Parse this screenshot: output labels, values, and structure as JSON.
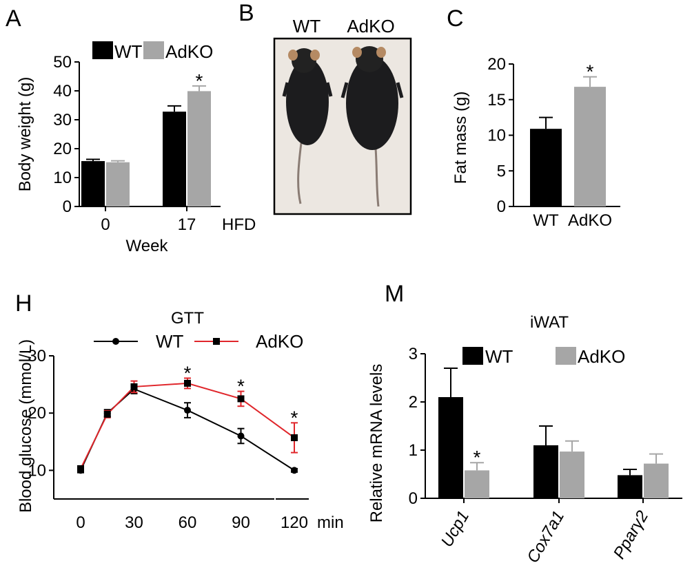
{
  "panels": {
    "A": "A",
    "B": "B",
    "C": "C",
    "H": "H",
    "M": "M"
  },
  "colors": {
    "wt": "#000000",
    "adko": "#a6a6a6",
    "gtt_adko_line": "#e0262b"
  },
  "mouse_photo": {
    "labels": [
      "WT",
      "AdKO"
    ],
    "icon": "mouse-photo-illustration"
  },
  "chart_data": [
    {
      "id": "A",
      "type": "bar",
      "categories": [
        "0",
        "17"
      ],
      "category_suffix": "HFD",
      "xlabel": "Week",
      "ylabel": "Body weight (g)",
      "ylim": [
        0,
        50
      ],
      "yticks": [
        "0",
        "10",
        "20",
        "30",
        "40",
        "50"
      ],
      "legend": "top",
      "series": [
        {
          "name": "WT",
          "values": [
            15.7,
            32.8
          ],
          "errors": [
            0.6,
            2.0
          ]
        },
        {
          "name": "AdKO",
          "values": [
            15.3,
            39.9
          ],
          "errors": [
            0.5,
            1.8
          ]
        }
      ],
      "significance": [
        {
          "category": "17",
          "series": "AdKO",
          "mark": "*"
        }
      ]
    },
    {
      "id": "C",
      "type": "bar",
      "categories": [
        "WT",
        "AdKO"
      ],
      "ylabel": "Fat mass (g)",
      "ylim": [
        0,
        20
      ],
      "yticks": [
        "0",
        "5",
        "10",
        "15",
        "20"
      ],
      "values": [
        10.9,
        16.8
      ],
      "errors": [
        1.6,
        1.4
      ],
      "significance": [
        {
          "category": "AdKO",
          "mark": "*"
        }
      ]
    },
    {
      "id": "H",
      "type": "line",
      "title": "GTT",
      "ylabel": "Blood glucose (mmol/L)",
      "x": [
        0,
        15,
        30,
        60,
        90,
        120
      ],
      "xticks": [
        "0",
        "30",
        "60",
        "90",
        "120"
      ],
      "xunit": "min",
      "ylim": [
        5,
        30
      ],
      "yticks": [
        "10",
        "20",
        "30"
      ],
      "legend": "top",
      "series": [
        {
          "name": "WT",
          "values": [
            10.0,
            20.0,
            24.2,
            20.5,
            16.0,
            10.0
          ],
          "errors": [
            0.4,
            0.6,
            0.8,
            1.3,
            1.3,
            0.3
          ]
        },
        {
          "name": "AdKO",
          "values": [
            10.3,
            19.8,
            24.6,
            25.2,
            22.5,
            15.7
          ],
          "errors": [
            0.4,
            0.6,
            1.0,
            0.9,
            1.3,
            2.6
          ]
        }
      ],
      "significance": [
        {
          "x": 60,
          "mark": "*"
        },
        {
          "x": 90,
          "mark": "*"
        },
        {
          "x": 120,
          "mark": "*"
        }
      ]
    },
    {
      "id": "M",
      "type": "bar",
      "title": "iWAT",
      "ylabel": "Relative mRNA levels",
      "categories": [
        "Ucp1",
        "Cox7a1",
        "Pparγ2"
      ],
      "ylim": [
        0,
        3
      ],
      "yticks": [
        "0",
        "1",
        "2",
        "3"
      ],
      "legend": "top",
      "series": [
        {
          "name": "WT",
          "values": [
            2.1,
            1.1,
            0.48
          ],
          "errors": [
            0.6,
            0.4,
            0.12
          ]
        },
        {
          "name": "AdKO",
          "values": [
            0.58,
            0.97,
            0.72
          ],
          "errors": [
            0.16,
            0.22,
            0.2
          ]
        }
      ],
      "significance": [
        {
          "category": "Ucp1",
          "series": "AdKO",
          "mark": "*"
        }
      ]
    }
  ]
}
